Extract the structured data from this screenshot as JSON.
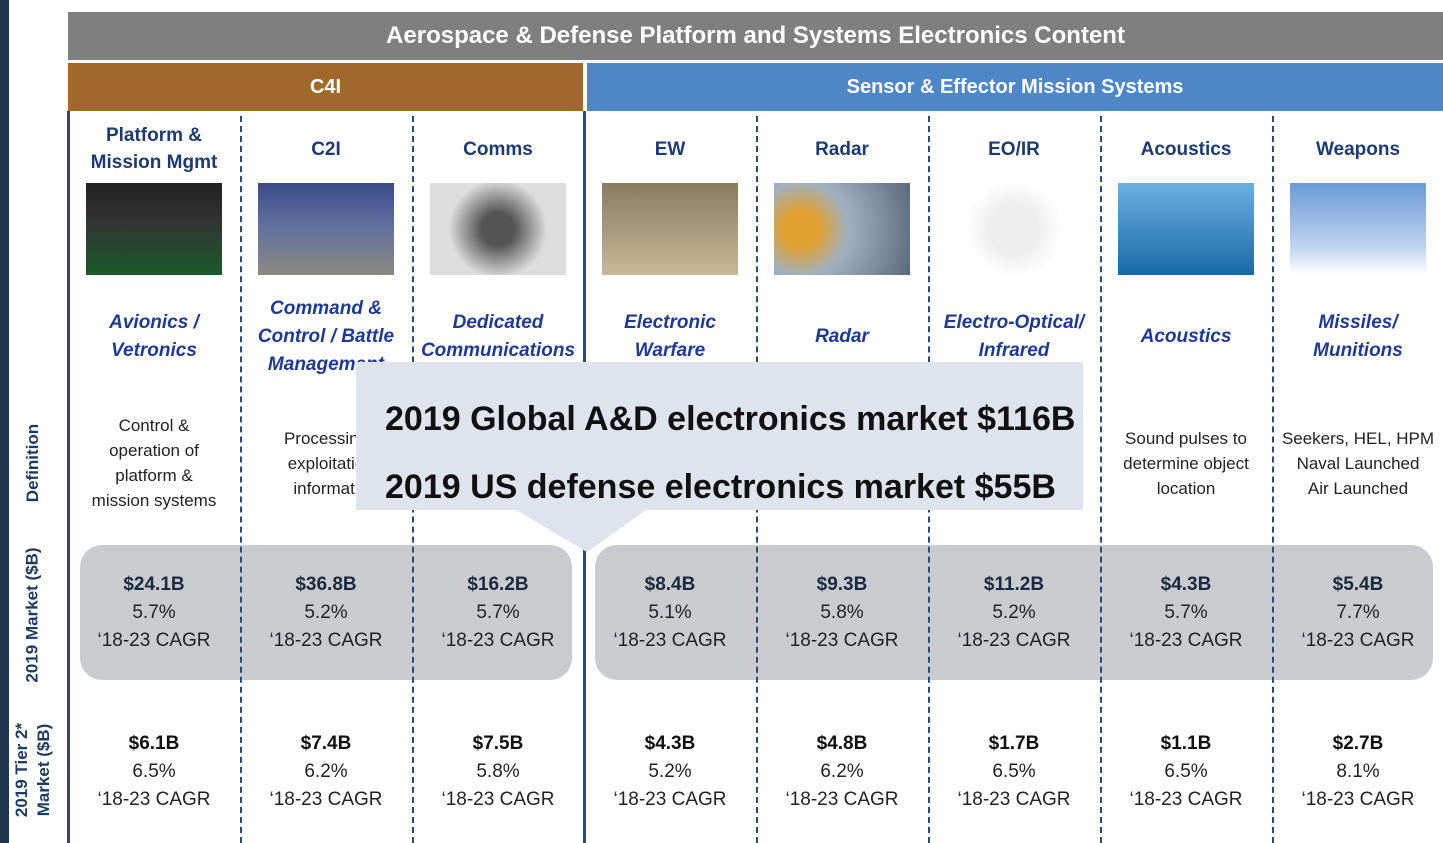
{
  "header": {
    "title": "Aerospace & Defense Platform and Systems Electronics Content"
  },
  "groups": [
    {
      "label": "C4I"
    },
    {
      "label": "Sensor & Effector Mission Systems"
    }
  ],
  "row_labels": [
    "Definition",
    "2019 Market ($B)",
    [
      "2019 Tier 2*",
      "Market ($B)"
    ]
  ],
  "columns": [
    {
      "name": [
        "Platform &",
        "Mission Mgmt"
      ],
      "subtitle": [
        "Avionics /",
        "Vetronics"
      ],
      "definition": [
        "Control &",
        "operation of",
        "platform &",
        "mission systems"
      ],
      "market": [
        "$24.1B",
        "5.7%",
        "‘18-23 CAGR"
      ],
      "tier2": [
        "$6.1B",
        "6.5%",
        "‘18-23 CAGR"
      ]
    },
    {
      "name": [
        "C2I"
      ],
      "subtitle": [
        "Command &",
        "Control / Battle",
        "Management"
      ],
      "definition": [
        "Processing",
        "exploitatio",
        "informati"
      ],
      "market": [
        "$36.8B",
        "5.2%",
        "‘18-23 CAGR"
      ],
      "tier2": [
        "$7.4B",
        "6.2%",
        "‘18-23 CAGR"
      ]
    },
    {
      "name": [
        "Comms"
      ],
      "subtitle": [
        "Dedicated",
        "Communications"
      ],
      "definition": [],
      "market": [
        "$16.2B",
        "5.7%",
        "‘18-23 CAGR"
      ],
      "tier2": [
        "$7.5B",
        "5.8%",
        "‘18-23 CAGR"
      ]
    },
    {
      "name": [
        "EW"
      ],
      "subtitle": [
        "Electronic",
        "Warfare"
      ],
      "definition": [],
      "market": [
        "$8.4B",
        "5.1%",
        "‘18-23 CAGR"
      ],
      "tier2": [
        "$4.3B",
        "5.2%",
        "‘18-23 CAGR"
      ]
    },
    {
      "name": [
        "Radar"
      ],
      "subtitle": [
        "Radar"
      ],
      "definition": [],
      "market": [
        "$9.3B",
        "5.8%",
        "‘18-23 CAGR"
      ],
      "tier2": [
        "$4.8B",
        "6.2%",
        "‘18-23 CAGR"
      ]
    },
    {
      "name": [
        "EO/IR"
      ],
      "subtitle": [
        "Electro-Optical/",
        "Infrared"
      ],
      "definition": [],
      "market": [
        "$11.2B",
        "5.2%",
        "‘18-23 CAGR"
      ],
      "tier2": [
        "$1.7B",
        "6.5%",
        "‘18-23 CAGR"
      ]
    },
    {
      "name": [
        "Acoustics"
      ],
      "subtitle": [
        "Acoustics"
      ],
      "definition": [
        "Sound pulses to",
        "determine object",
        "location"
      ],
      "market": [
        "$4.3B",
        "5.7%",
        "‘18-23 CAGR"
      ],
      "tier2": [
        "$1.1B",
        "6.5%",
        "‘18-23 CAGR"
      ]
    },
    {
      "name": [
        "Weapons"
      ],
      "subtitle": [
        "Missiles/",
        "Munitions"
      ],
      "definition": [
        "Seekers, HEL, HPM",
        "Naval Launched",
        "Air Launched"
      ],
      "market": [
        "$5.4B",
        "7.7%",
        "‘18-23 CAGR"
      ],
      "tier2": [
        "$2.7B",
        "8.1%",
        "‘18-23 CAGR"
      ]
    }
  ],
  "callout": [
    "2019 Global A&D electronics market $116B",
    "2019 US defense electronics market $55B"
  ]
}
